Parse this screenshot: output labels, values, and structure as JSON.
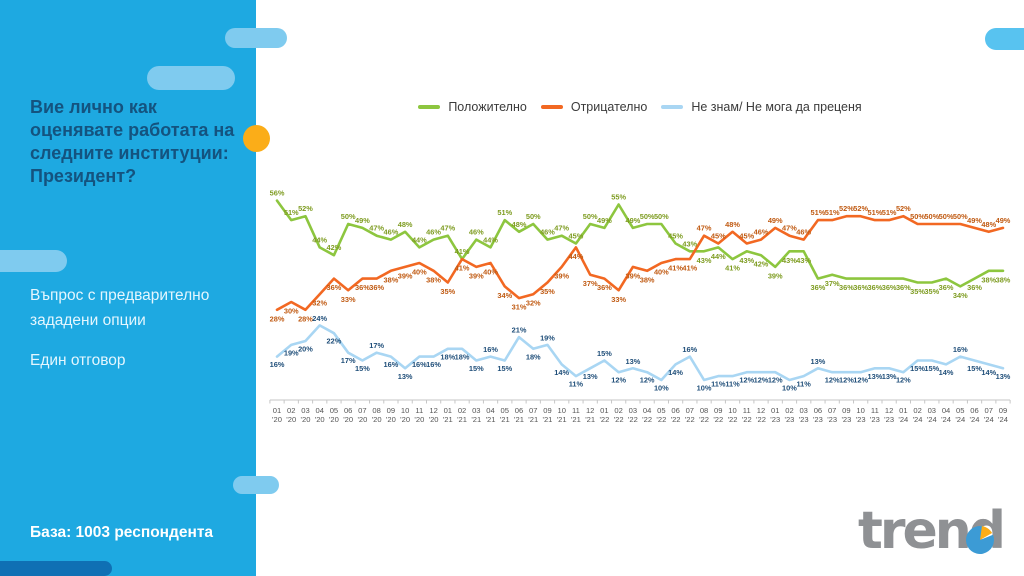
{
  "slide": {
    "question_title": "Вие лично как оценявате работата на следните институции:",
    "question_subject": "Президент?",
    "note_line1": "Въпрос с предварително зададени опции",
    "note_line2": "Един отговор",
    "base_text": "База: 1003 респондента",
    "brand": "trend"
  },
  "colors": {
    "sidebar": "#1EA9E1",
    "accent_orange_dot": "#FBAD18",
    "positive_line": "#8DC63F",
    "negative_line": "#F26822",
    "dontknow_line": "#A9D6F3",
    "positive_label": "#7E9C21",
    "negative_label": "#C05A12",
    "dontknow_label": "#1F4E79",
    "axis": "#C6C6C6"
  },
  "chart_data": {
    "type": "line",
    "title": "",
    "xlabel": "",
    "ylabel": "",
    "ylim": [
      0,
      60
    ],
    "grid": false,
    "legend_position": "top",
    "value_suffix": "%",
    "x": [
      "01 '20",
      "02 '20",
      "03 '20",
      "04 '20",
      "05 '20",
      "06 '20",
      "07 '20",
      "08 '20",
      "09 '20",
      "10 '20",
      "11 '20",
      "12 '20",
      "01 '21",
      "02 '21",
      "03 '21",
      "04 '21",
      "05 '21",
      "06 '21",
      "07 '21",
      "09 '21",
      "10 '21",
      "11 '21",
      "12 '21",
      "01 '22",
      "02 '22",
      "03 '22",
      "04 '22",
      "05 '22",
      "06 '22",
      "07 '22",
      "08 '22",
      "09 '22",
      "10 '22",
      "11 '22",
      "12 '22",
      "01 '23",
      "02 '23",
      "03 '23",
      "06 '23",
      "07 '23",
      "09 '23",
      "10 '23",
      "11 '23",
      "12 '23",
      "01 '24",
      "02 '24",
      "03 '24",
      "04 '24",
      "05 '24",
      "06 '24",
      "07 '24",
      "09 '24"
    ],
    "series": [
      {
        "name": "Положително",
        "color": "#8DC63F",
        "label_color": "#7E9C21",
        "values": [
          56,
          51,
          52,
          44,
          42,
          50,
          49,
          47,
          46,
          48,
          44,
          46,
          47,
          41,
          46,
          44,
          51,
          48,
          50,
          46,
          47,
          45,
          50,
          49,
          55,
          49,
          50,
          50,
          45,
          43,
          43,
          44,
          41,
          43,
          42,
          39,
          43,
          43,
          36,
          37,
          36,
          36,
          36,
          36,
          36,
          35,
          35,
          36,
          34,
          36,
          38,
          38
        ]
      },
      {
        "name": "Отрицателно",
        "color": "#F26822",
        "label_color": "#C05A12",
        "values": [
          28,
          30,
          28,
          32,
          36,
          33,
          36,
          36,
          38,
          39,
          40,
          38,
          35,
          41,
          39,
          40,
          34,
          31,
          32,
          35,
          39,
          44,
          37,
          36,
          33,
          39,
          38,
          40,
          41,
          41,
          47,
          45,
          48,
          45,
          46,
          49,
          47,
          46,
          51,
          51,
          52,
          52,
          51,
          51,
          52,
          50,
          50,
          50,
          50,
          49,
          48,
          49
        ]
      },
      {
        "name": "Не знам/ Не мога да преценя",
        "color": "#A9D6F3",
        "label_color": "#1F4E79",
        "values": [
          16,
          19,
          20,
          24,
          22,
          17,
          15,
          17,
          16,
          13,
          16,
          16,
          18,
          18,
          15,
          16,
          15,
          21,
          18,
          19,
          14,
          11,
          13,
          15,
          12,
          13,
          12,
          10,
          14,
          16,
          10,
          11,
          11,
          12,
          12,
          12,
          10,
          11,
          13,
          12,
          12,
          12,
          13,
          13,
          12,
          15,
          15,
          14,
          16,
          15,
          14,
          13
        ]
      }
    ]
  }
}
